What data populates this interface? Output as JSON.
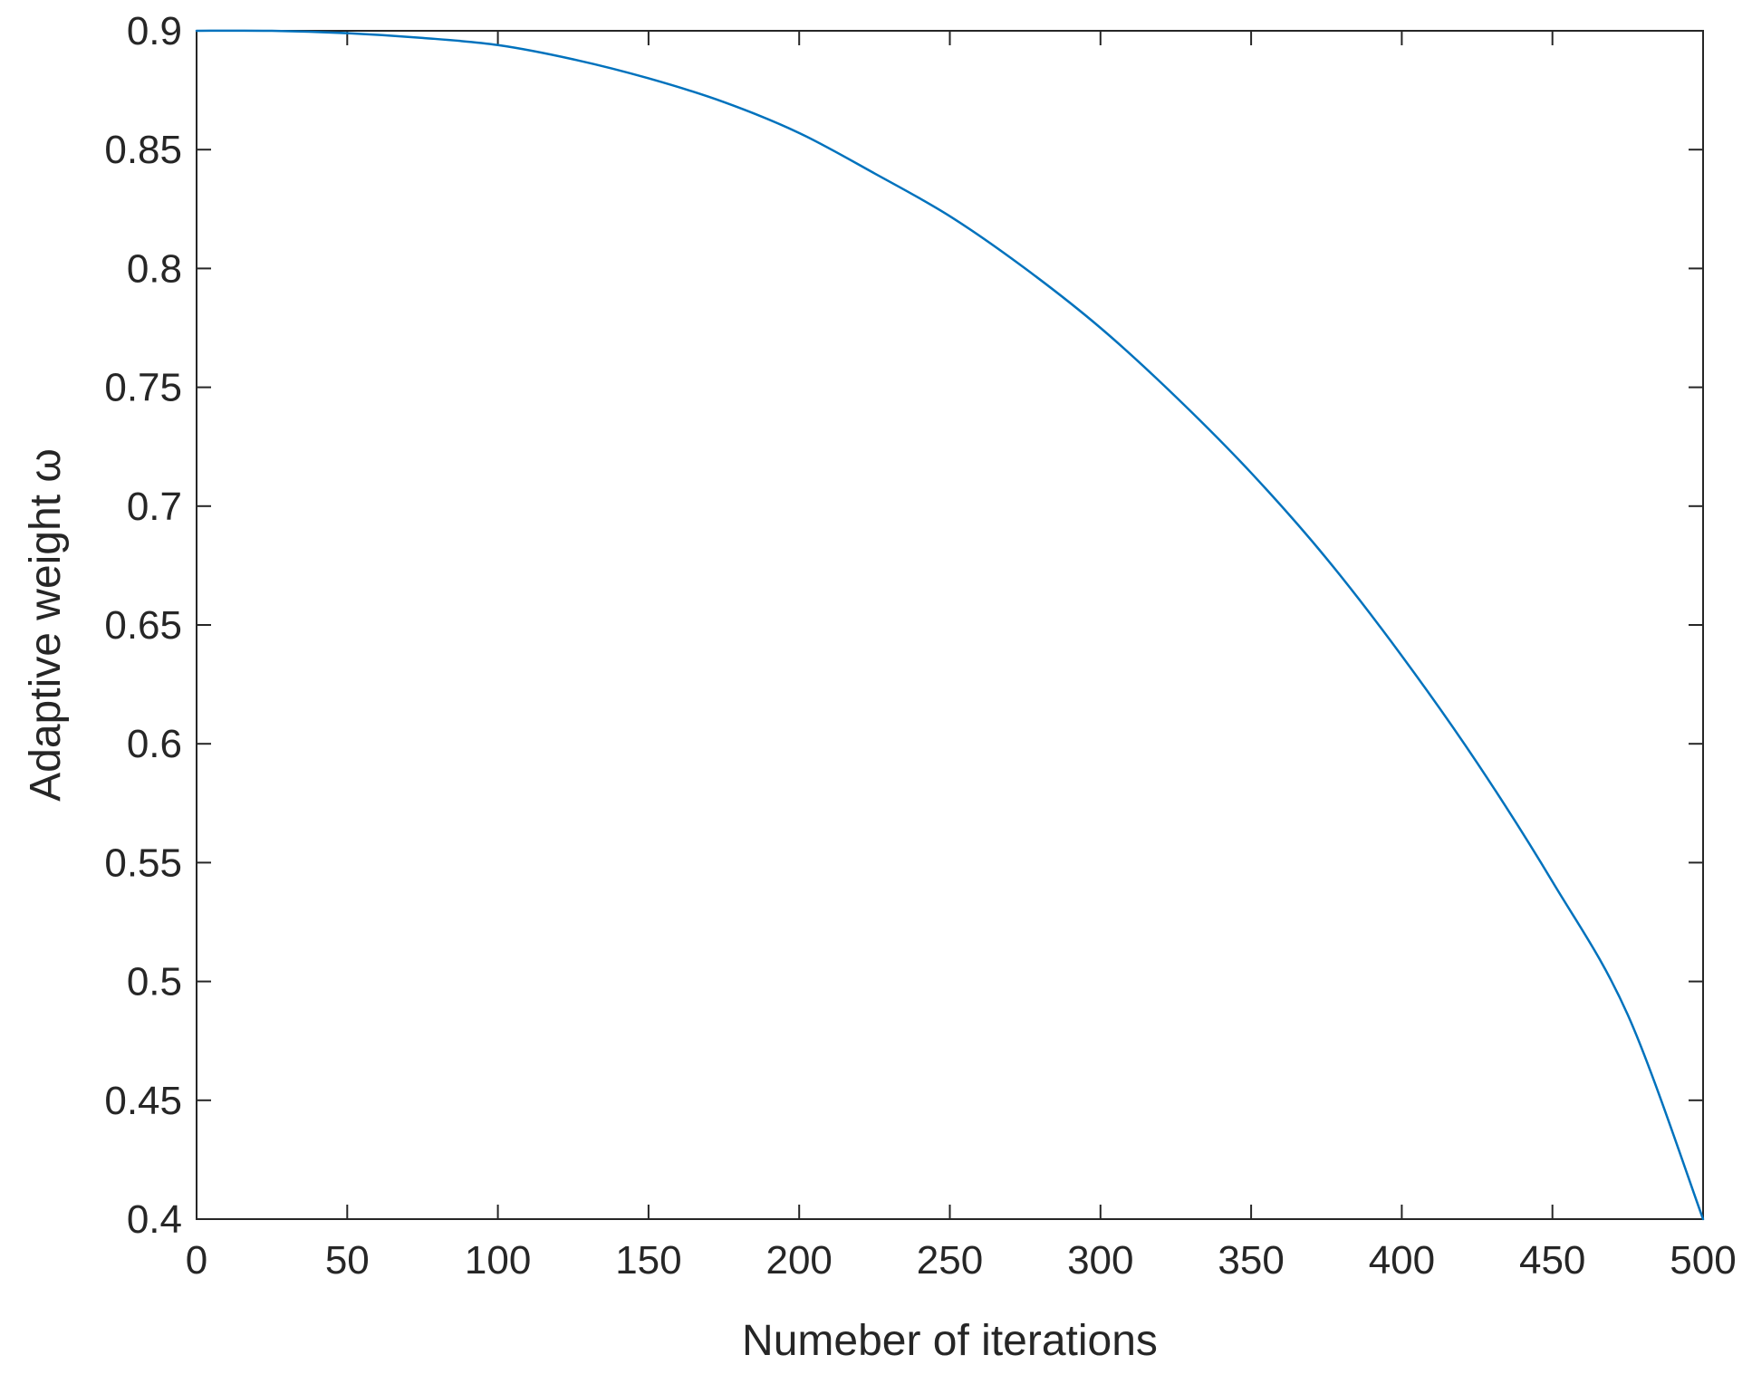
{
  "chart_data": {
    "type": "line",
    "title": "",
    "xlabel": "Numeber of iterations",
    "ylabel": "Adaptive weight ω",
    "xlim": [
      0,
      500
    ],
    "ylim": [
      0.4,
      0.9
    ],
    "xticks": [
      0,
      50,
      100,
      150,
      200,
      250,
      300,
      350,
      400,
      450,
      500
    ],
    "xtick_labels": [
      "0",
      "50",
      "100",
      "150",
      "200",
      "250",
      "300",
      "350",
      "400",
      "450",
      "500"
    ],
    "yticks": [
      0.4,
      0.45,
      0.5,
      0.55,
      0.6,
      0.65,
      0.7,
      0.75,
      0.8,
      0.85,
      0.9
    ],
    "ytick_labels": [
      "0.4",
      "0.45",
      "0.5",
      "0.55",
      "0.6",
      "0.65",
      "0.7",
      "0.75",
      "0.8",
      "0.85",
      "0.9"
    ],
    "grid": false,
    "box": true,
    "series": [
      {
        "color": "#0072BD",
        "x": [
          0,
          25,
          50,
          75,
          100,
          125,
          150,
          175,
          200,
          225,
          250,
          275,
          300,
          325,
          350,
          375,
          400,
          425,
          450,
          475,
          500
        ],
        "y": [
          0.9,
          0.9,
          0.899,
          0.897,
          0.894,
          0.888,
          0.88,
          0.87,
          0.857,
          0.84,
          0.822,
          0.8,
          0.775,
          0.746,
          0.714,
          0.678,
          0.637,
          0.592,
          0.542,
          0.486,
          0.4
        ]
      }
    ]
  }
}
